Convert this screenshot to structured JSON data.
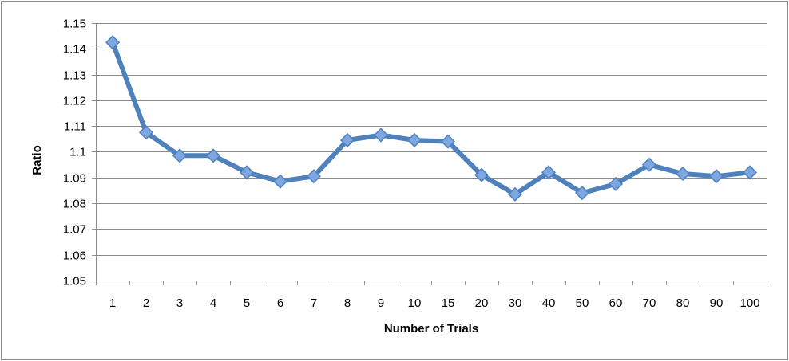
{
  "chart_data": {
    "type": "line",
    "title": "",
    "xlabel": "Number of Trials",
    "ylabel": "Ratio",
    "categories": [
      "1",
      "2",
      "3",
      "4",
      "5",
      "6",
      "7",
      "8",
      "9",
      "10",
      "15",
      "20",
      "30",
      "40",
      "50",
      "60",
      "70",
      "80",
      "90",
      "100"
    ],
    "series": [
      {
        "values": [
          1.1425,
          1.1075,
          1.0985,
          1.0985,
          1.092,
          1.0885,
          1.0905,
          1.1045,
          1.1065,
          1.1045,
          1.104,
          1.091,
          1.0835,
          1.092,
          1.084,
          1.0875,
          1.095,
          1.0915,
          1.0905,
          1.092
        ],
        "color": "#4f81bd",
        "marker_color": "#7ea6e0"
      }
    ],
    "ylim": [
      1.05,
      1.15
    ],
    "yticks": [
      1.05,
      1.06,
      1.07,
      1.08,
      1.09,
      1.1,
      1.11,
      1.12,
      1.13,
      1.14,
      1.15
    ],
    "ytick_labels": [
      "1.05",
      "1.06",
      "1.07",
      "1.08",
      "1.09",
      "1.1",
      "1.11",
      "1.12",
      "1.13",
      "1.14",
      "1.15"
    ],
    "grid": true,
    "legend": "none",
    "marker": "diamond"
  }
}
